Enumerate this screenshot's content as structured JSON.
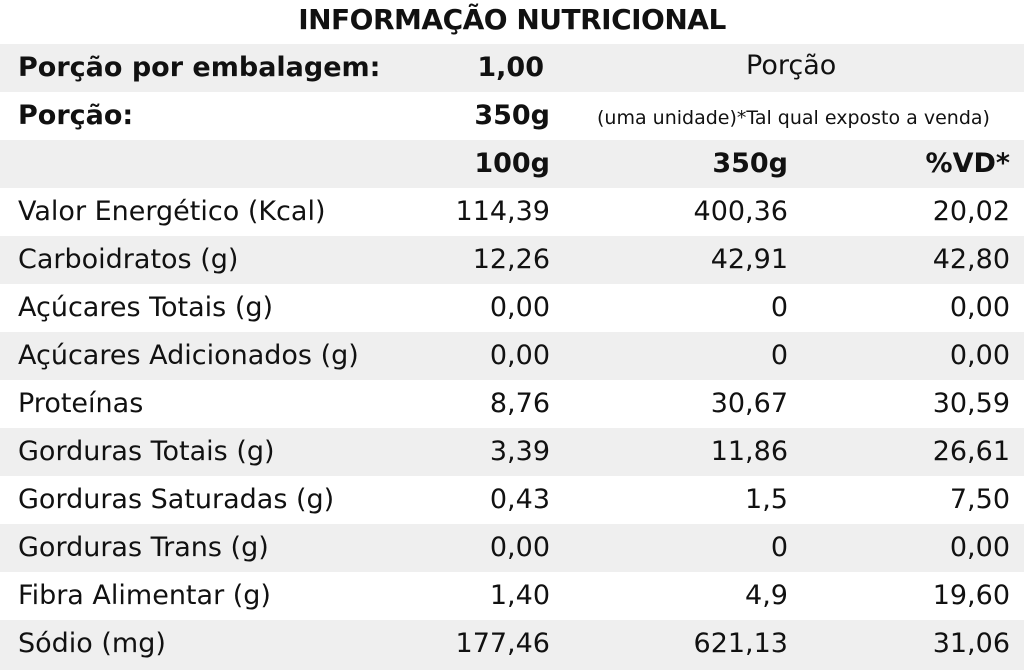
{
  "title": "INFORMAÇÃO NUTRICIONAL",
  "serving_info": {
    "per_package_label": "Porção por embalagem:",
    "per_package_value": "1,00",
    "portion_header": "Porção",
    "portion_label": "Porção:",
    "portion_value": "350g",
    "portion_note": "(uma unidade)*Tal qual exposto a venda)"
  },
  "columns": [
    "100g",
    "350g",
    "%VD*"
  ],
  "rows": [
    {
      "name": "Valor Energético (Kcal)",
      "per100": "114,39",
      "per350": "400,36",
      "vd": "20,02"
    },
    {
      "name": "Carboidratos (g)",
      "per100": "12,26",
      "per350": "42,91",
      "vd": "42,80"
    },
    {
      "name": "Açúcares Totais (g)",
      "per100": "0,00",
      "per350": "0",
      "vd": "0,00"
    },
    {
      "name": "Açúcares Adicionados (g)",
      "per100": "0,00",
      "per350": "0",
      "vd": "0,00"
    },
    {
      "name": "Proteínas",
      "per100": "8,76",
      "per350": "30,67",
      "vd": "30,59"
    },
    {
      "name": "Gorduras Totais (g)",
      "per100": "3,39",
      "per350": "11,86",
      "vd": "26,61"
    },
    {
      "name": "Gorduras Saturadas (g)",
      "per100": "0,43",
      "per350": "1,5",
      "vd": "7,50"
    },
    {
      "name": "Gorduras Trans (g)",
      "per100": "0,00",
      "per350": "0",
      "vd": "0,00"
    },
    {
      "name": "Fibra Alimentar (g)",
      "per100": "1,40",
      "per350": "4,9",
      "vd": "19,60"
    },
    {
      "name": "Sódio (mg)",
      "per100": "177,46",
      "per350": "621,13",
      "vd": "31,06"
    }
  ],
  "colors": {
    "shade": "#efefef",
    "text": "#111111",
    "background": "#ffffff"
  }
}
